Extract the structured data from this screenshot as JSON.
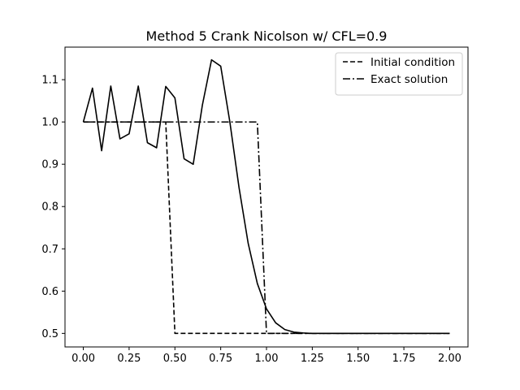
{
  "chart_data": {
    "type": "line",
    "title": "Method 5 Crank Nicolson w/ CFL=0.9",
    "xlabel": "",
    "ylabel": "",
    "xlim": [
      -0.1,
      2.1
    ],
    "ylim": [
      0.468,
      1.177
    ],
    "xticks": [
      0.0,
      0.25,
      0.5,
      0.75,
      1.0,
      1.25,
      1.5,
      1.75,
      2.0
    ],
    "xtick_labels": [
      "0.00",
      "0.25",
      "0.50",
      "0.75",
      "1.00",
      "1.25",
      "1.50",
      "1.75",
      "2.00"
    ],
    "yticks": [
      0.5,
      0.6,
      0.7,
      0.8,
      0.9,
      1.0,
      1.1
    ],
    "ytick_labels": [
      "0.5",
      "0.6",
      "0.7",
      "0.8",
      "0.9",
      "1.0",
      "1.1"
    ],
    "grid": false,
    "legend_position": "top-right",
    "series": [
      {
        "name": "Initial condition",
        "style": "dashed",
        "color": "#000000",
        "x": [
          0.0,
          0.45,
          0.5,
          2.0
        ],
        "y": [
          1.0,
          1.0,
          0.5,
          0.5
        ]
      },
      {
        "name": "Exact solution",
        "style": "dashdot",
        "color": "#000000",
        "x": [
          0.0,
          0.95,
          1.0,
          2.0
        ],
        "y": [
          1.0,
          1.0,
          0.5,
          0.5
        ]
      },
      {
        "name": "",
        "style": "solid",
        "color": "#000000",
        "x": [
          0.0,
          0.05,
          0.1,
          0.15,
          0.2,
          0.25,
          0.3,
          0.35,
          0.4,
          0.45,
          0.5,
          0.55,
          0.6,
          0.65,
          0.7,
          0.75,
          0.8,
          0.85,
          0.9,
          0.95,
          1.0,
          1.05,
          1.1,
          1.15,
          1.2,
          1.25,
          1.3,
          1.35,
          1.4,
          1.45,
          1.5,
          1.55,
          1.6,
          1.65,
          1.7,
          1.75,
          1.8,
          1.85,
          1.9,
          1.95,
          2.0
        ],
        "y": [
          1.0,
          1.08,
          0.932,
          1.085,
          0.96,
          0.972,
          1.085,
          0.951,
          0.939,
          1.084,
          1.057,
          0.913,
          0.9,
          1.04,
          1.147,
          1.132,
          1.0,
          0.845,
          0.713,
          0.618,
          0.558,
          0.525,
          0.509,
          0.503,
          0.501,
          0.5,
          0.5,
          0.5,
          0.5,
          0.5,
          0.5,
          0.5,
          0.5,
          0.5,
          0.5,
          0.5,
          0.5,
          0.5,
          0.5,
          0.5,
          0.5
        ]
      }
    ]
  }
}
